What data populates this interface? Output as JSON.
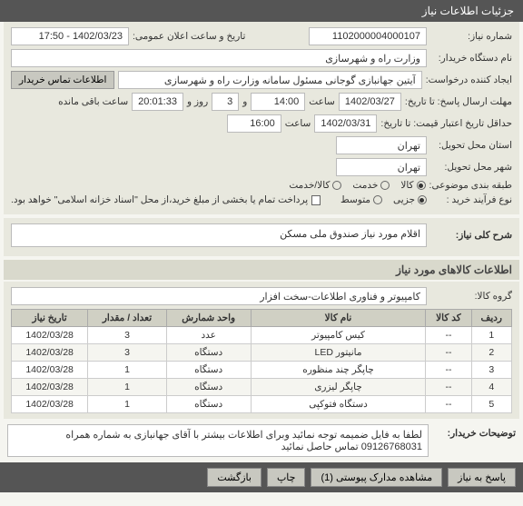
{
  "header": {
    "title": "جزئیات اطلاعات نیاز"
  },
  "form": {
    "req_no_label": "شماره نیاز:",
    "req_no": "1102000004000107",
    "announce_label": "تاریخ و ساعت اعلان عمومی:",
    "announce_val": "1402/03/23 - 17:50",
    "org_label": "نام دستگاه خریدار:",
    "org_val": "وزارت راه و شهرسازی",
    "creator_label": "ایجاد کننده درخواست:",
    "creator_val": "آیتین جهانبازی گوجانی مسئول سامانه وزارت راه و شهرسازی",
    "contact_btn": "اطلاعات تماس خریدار",
    "deadline_send_label": "مهلت ارسال پاسخ: تا تاریخ:",
    "deadline_send_date": "1402/03/27",
    "time_label": "ساعت",
    "deadline_send_time": "14:00",
    "remain_label_a": "و",
    "remain_count": "3",
    "remain_label_b": "روز و",
    "remain_timer": "20:01:33",
    "remain_label_c": "ساعت باقی مانده",
    "price_valid_label": "حداقل تاریخ اعتبار قیمت: تا تاریخ:",
    "price_valid_date": "1402/03/31",
    "price_valid_time": "16:00",
    "city_loc_label": "استان محل تحویل:",
    "city_loc_val": "تهران",
    "city_del_label": "شهر محل تحویل:",
    "city_del_val": "تهران",
    "class_label": "طبقه بندی موضوعی:",
    "class_opts": {
      "a": "کالا",
      "b": "خدمت",
      "c": "کالا/خدمت"
    },
    "proc_label": "نوع فرآیند خرید :",
    "proc_opts": {
      "a": "جزیی",
      "b": "متوسط"
    },
    "pay_full_label": "پرداخت تمام یا بخشی از مبلغ خرید،از محل \"اسناد خزانه اسلامی\" خواهد بود."
  },
  "desc": {
    "title_label": "شرح کلی نیاز:",
    "title_val": "اقلام مورد نیاز صندوق ملی مسکن",
    "items_section": "اطلاعات کالاهای مورد نیاز",
    "group_label": "گروه کالا:",
    "group_val": "کامپیوتر و فناوری اطلاعات-سخت افزار"
  },
  "table": {
    "cols": [
      "ردیف",
      "کد کالا",
      "نام کالا",
      "واحد شمارش",
      "تعداد / مقدار",
      "تاریخ نیاز"
    ],
    "rows": [
      [
        "1",
        "--",
        "کیس کامپیوتر",
        "عدد",
        "3",
        "1402/03/28"
      ],
      [
        "2",
        "--",
        "مانیتور LED",
        "دستگاه",
        "3",
        "1402/03/28"
      ],
      [
        "3",
        "--",
        "چاپگر چند منظوره",
        "دستگاه",
        "1",
        "1402/03/28"
      ],
      [
        "4",
        "--",
        "چاپگر لیزری",
        "دستگاه",
        "1",
        "1402/03/28"
      ],
      [
        "5",
        "--",
        "دستگاه فتوکپی",
        "دستگاه",
        "1",
        "1402/03/28"
      ]
    ]
  },
  "buyer_note": {
    "label": "توضیحات خریدار:",
    "text": "لطفا به فایل ضمیمه توجه نمائید وبرای اطلاعات بیشتر با  آقای جهانبازی  به شماره همراه 09126768031 تماس حاصل نمائید"
  },
  "footer": {
    "reply": "پاسخ به نیاز",
    "attach": "مشاهده مدارک پیوستی (1)",
    "print": "چاپ",
    "back": "بازگشت"
  }
}
